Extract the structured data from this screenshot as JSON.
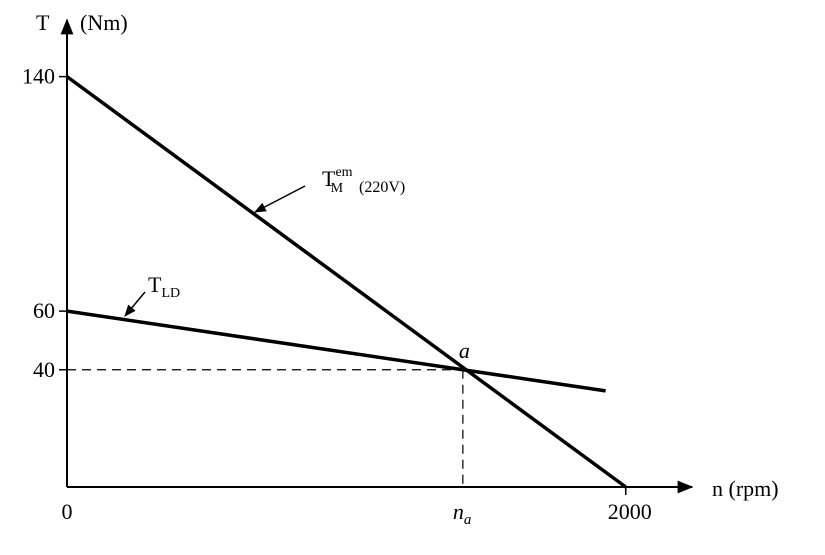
{
  "chart_data": {
    "type": "line",
    "y_label": "T",
    "y_unit": "(Nm)",
    "x_label": "n (rpm)",
    "xlim": [
      0,
      2230
    ],
    "ylim": [
      0,
      160
    ],
    "xticks": [
      0,
      2000
    ],
    "yticks": [
      40,
      60,
      140
    ],
    "series": [
      {
        "name": "T",
        "sub": "M",
        "sup": "em",
        "note": "(220V)",
        "color": "#000000",
        "x": [
          0,
          2000
        ],
        "values": [
          140,
          0
        ]
      },
      {
        "name": "T",
        "sub": "LD",
        "color": "#000000",
        "x": [
          0,
          1928
        ],
        "values": [
          60,
          32.8
        ]
      }
    ],
    "operating_point": {
      "label": "a",
      "x": 1417,
      "y": 40,
      "x_label": "n",
      "x_label_sub": "a"
    }
  }
}
